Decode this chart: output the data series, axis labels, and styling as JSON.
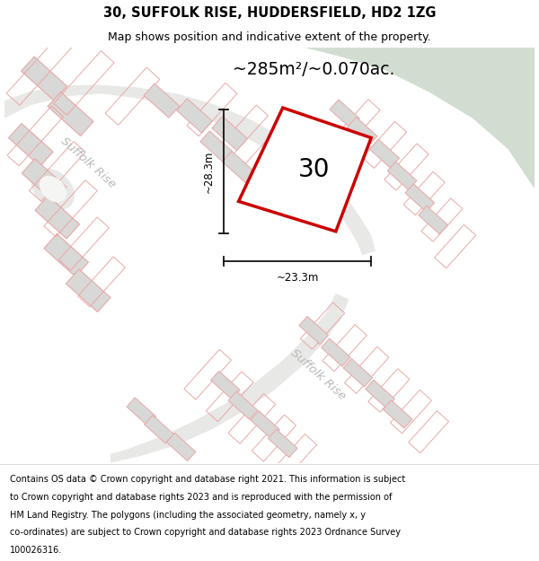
{
  "title_line1": "30, SUFFOLK RISE, HUDDERSFIELD, HD2 1ZG",
  "title_line2": "Map shows position and indicative extent of the property.",
  "area_label": "~285m²/~0.070ac.",
  "dim_width": "~23.3m",
  "dim_height": "~28.3m",
  "plot_number": "30",
  "footer_lines": [
    "Contains OS data © Crown copyright and database right 2021. This information is subject",
    "to Crown copyright and database rights 2023 and is reproduced with the permission of",
    "HM Land Registry. The polygons (including the associated geometry, namely x, y",
    "co-ordinates) are subject to Crown copyright and database rights 2023 Ordnance Survey",
    "100026316."
  ],
  "map_bg": "#f5f5f3",
  "green_color": "#d0ddd0",
  "road_color": "#e8e8e6",
  "building_fill": "#d8d8d6",
  "building_edge": "#e8a8a8",
  "plot_outline_color": "#cc0000",
  "plot_fill": "#ffffff",
  "street_color": "#b8b8b8",
  "dim_color": "#111111",
  "title_bg": "#ffffff",
  "footer_bg": "#ffffff",
  "title_fontsize": 10.5,
  "subtitle_fontsize": 9.0,
  "area_fontsize": 13.5,
  "number_fontsize": 20,
  "dim_fontsize": 8.5,
  "street_fontsize": 9.5
}
